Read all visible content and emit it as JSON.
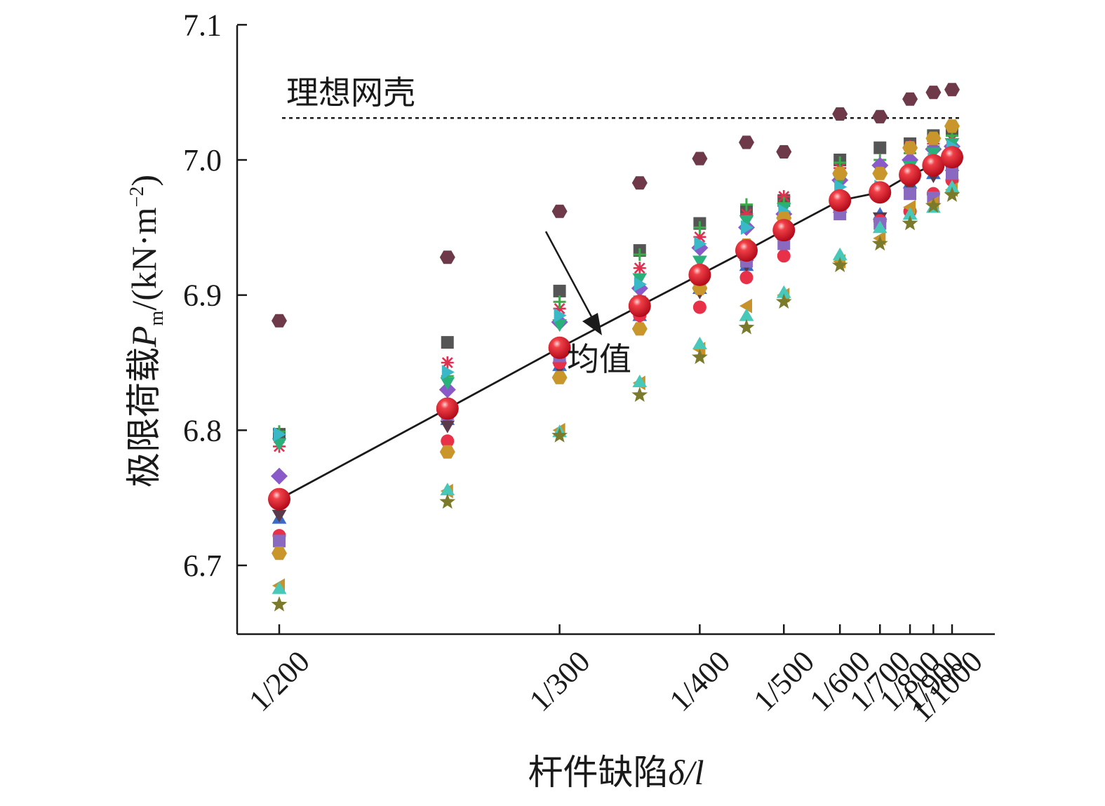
{
  "chart_data": {
    "type": "scatter",
    "xlabel": {
      "main": "杆件缺陷",
      "italic": "δ/l"
    },
    "ylabel": {
      "main": "极限荷载",
      "symbol": "P",
      "subscript": "m",
      "unit": "/(kN·m",
      "unit_sup": "−2",
      "unit_close": ")"
    },
    "categories": [
      "1/200",
      "1/250",
      "1/300",
      "1/350",
      "1/400",
      "1/450",
      "1/500",
      "1/600",
      "1/700",
      "1/800",
      "1/900",
      "1/1000"
    ],
    "x_tick_labels": [
      "1/200",
      "1/300",
      "1/400",
      "1/500",
      "1/600",
      "1/700",
      "1/800",
      "1/900",
      "1/1000"
    ],
    "ylim": [
      6.65,
      7.1
    ],
    "y_ticks": [
      6.7,
      6.8,
      6.9,
      7.0,
      7.1
    ],
    "y_tick_labels": [
      "6.7",
      "6.8",
      "6.9",
      "7.0",
      "7.1"
    ],
    "grid": false,
    "legend": "none",
    "reference_line": {
      "label": "理想网壳",
      "value": 7.031,
      "style": "dotted"
    },
    "mean_annotation": "均值",
    "mean_series": {
      "values": [
        6.749,
        6.816,
        6.861,
        6.892,
        6.915,
        6.933,
        6.948,
        6.97,
        6.976,
        6.989,
        6.996,
        7.002
      ],
      "color": "#e8202a"
    },
    "samples": [
      {
        "shape": "hexagon",
        "color": "#6e3a4a",
        "values": [
          6.881,
          6.928,
          6.962,
          6.983,
          7.001,
          7.013,
          7.006,
          7.034,
          7.032,
          7.045,
          7.05,
          7.052
        ]
      },
      {
        "shape": "square",
        "color": "#555555",
        "values": [
          6.797,
          6.865,
          6.903,
          6.933,
          6.953,
          6.962,
          6.97,
          7.0,
          7.009,
          7.012,
          7.018,
          7.022
        ]
      },
      {
        "shape": "asterisk",
        "color": "#e03050",
        "values": [
          6.788,
          6.85,
          6.89,
          6.92,
          6.943,
          6.96,
          6.973,
          6.994,
          6.995,
          7.01,
          7.012,
          7.015
        ]
      },
      {
        "shape": "plus",
        "color": "#3aaa4a",
        "values": [
          6.799,
          6.84,
          6.895,
          6.93,
          6.95,
          6.967,
          6.968,
          6.998,
          7.0,
          7.005,
          7.01,
          7.018
        ]
      },
      {
        "shape": "diamond",
        "color": "#8a5ac8",
        "values": [
          6.766,
          6.83,
          6.88,
          6.905,
          6.935,
          6.95,
          6.96,
          6.985,
          6.996,
          7.0,
          7.008,
          7.01
        ]
      },
      {
        "shape": "tri-down",
        "color": "#2ab07a",
        "values": [
          6.79,
          6.835,
          6.878,
          6.912,
          6.925,
          6.955,
          6.964,
          6.985,
          6.978,
          6.995,
          7.005,
          7.012
        ]
      },
      {
        "shape": "tri-right",
        "color": "#3ab8c8",
        "values": [
          6.797,
          6.843,
          6.885,
          6.908,
          6.938,
          6.95,
          6.962,
          6.98,
          6.98,
          6.992,
          7.0,
          7.01
        ]
      },
      {
        "shape": "tri-up",
        "color": "#3a6ac8",
        "values": [
          6.735,
          6.808,
          6.848,
          6.885,
          6.905,
          6.922,
          6.945,
          6.965,
          6.96,
          6.983,
          6.99,
          6.996
        ]
      },
      {
        "shape": "tri-down",
        "color": "#5a3a4a",
        "values": [
          6.737,
          6.803,
          6.846,
          6.883,
          6.902,
          6.922,
          6.94,
          6.962,
          6.957,
          6.98,
          6.988,
          6.992
        ]
      },
      {
        "shape": "circle",
        "color": "#e83048",
        "values": [
          6.722,
          6.792,
          6.85,
          6.885,
          6.891,
          6.913,
          6.929,
          6.963,
          6.955,
          6.962,
          6.975,
          6.985
        ]
      },
      {
        "shape": "square",
        "color": "#8a6ac0",
        "values": [
          6.718,
          6.812,
          6.855,
          6.895,
          6.912,
          6.925,
          6.938,
          6.96,
          6.953,
          6.975,
          6.972,
          6.99
        ]
      },
      {
        "shape": "hexagon",
        "color": "#c8962a",
        "values": [
          6.709,
          6.784,
          6.839,
          6.875,
          6.905,
          6.937,
          6.957,
          6.99,
          6.99,
          7.009,
          7.016,
          7.025
        ]
      },
      {
        "shape": "tri-left",
        "color": "#c8922a",
        "values": [
          6.685,
          6.755,
          6.8,
          6.835,
          6.86,
          6.892,
          6.9,
          6.925,
          6.942,
          6.965,
          6.968,
          6.978
        ]
      },
      {
        "shape": "tri-up",
        "color": "#48c8b8",
        "values": [
          6.683,
          6.756,
          6.799,
          6.836,
          6.864,
          6.885,
          6.902,
          6.93,
          6.95,
          6.96,
          6.965,
          6.98
        ]
      },
      {
        "shape": "star",
        "color": "#7a7a2a",
        "values": [
          6.671,
          6.747,
          6.796,
          6.826,
          6.854,
          6.876,
          6.895,
          6.922,
          6.938,
          6.953,
          6.966,
          6.974
        ]
      }
    ]
  }
}
